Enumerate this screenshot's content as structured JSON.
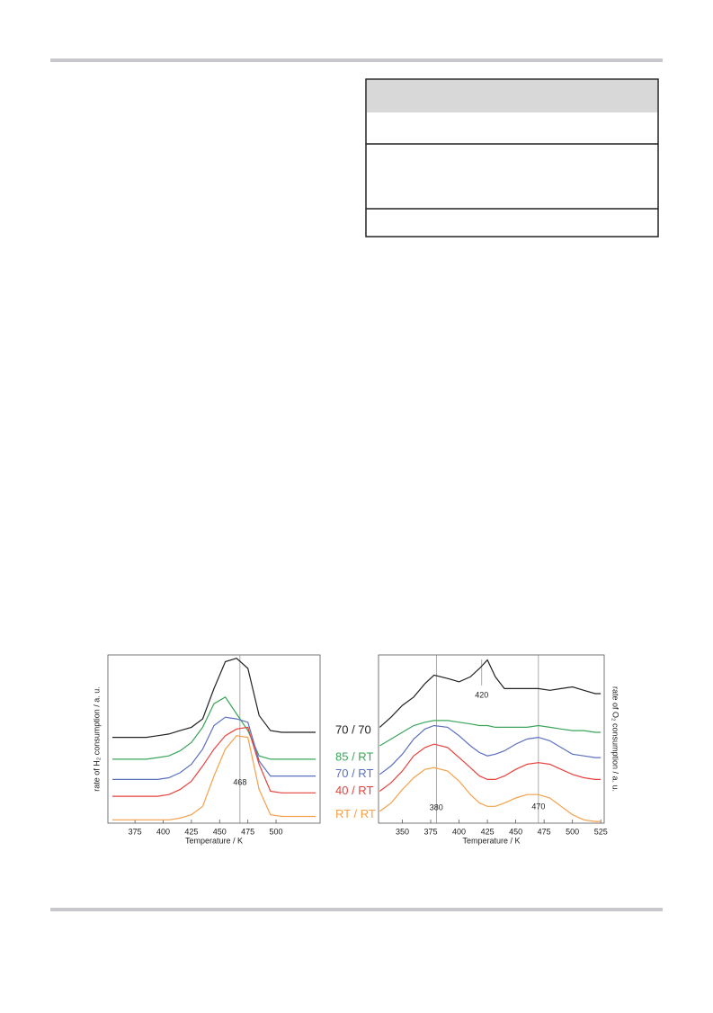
{
  "chart_data": [
    {
      "type": "line",
      "xlabel": "Temperature / K",
      "ylabel": "rate of H₂ consumption / a. u.",
      "xlim": [
        351,
        539
      ],
      "ylim": [
        0,
        100
      ],
      "xticks": [
        375,
        400,
        425,
        450,
        475,
        500
      ],
      "legend": "right",
      "annotations": [
        468
      ],
      "x": [
        355,
        365,
        375,
        385,
        395,
        405,
        415,
        425,
        435,
        445,
        455,
        465,
        475,
        485,
        495,
        505,
        515,
        525,
        535
      ],
      "series": [
        {
          "name": "70 / 70",
          "color": "#222222",
          "values": [
            51,
            51,
            51,
            51,
            52,
            53,
            55,
            57,
            62,
            80,
            96,
            98,
            92,
            64,
            55,
            54,
            54,
            54,
            54
          ]
        },
        {
          "name": "85 / RT",
          "color": "#3aa55a",
          "values": [
            38,
            38,
            38,
            38,
            39,
            40,
            43,
            48,
            57,
            71,
            75,
            65,
            55,
            40,
            38,
            38,
            38,
            38,
            38
          ]
        },
        {
          "name": "70 / RT",
          "color": "#5b6fc0",
          "values": [
            26,
            26,
            26,
            26,
            26,
            27,
            30,
            35,
            44,
            58,
            63,
            62,
            60,
            37,
            28,
            28,
            28,
            28,
            28
          ]
        },
        {
          "name": "40 / RT",
          "color": "#e8413c",
          "values": [
            16,
            16,
            16,
            16,
            16,
            17,
            20,
            25,
            34,
            44,
            52,
            56,
            57,
            35,
            19,
            18,
            18,
            18,
            18
          ]
        },
        {
          "name": "RT / RT",
          "color": "#f5a04a",
          "values": [
            2,
            2,
            2,
            2,
            2,
            2,
            3,
            5,
            10,
            28,
            44,
            52,
            51,
            20,
            5,
            4,
            4,
            4,
            4
          ]
        }
      ]
    },
    {
      "type": "line",
      "xlabel": "Temperature / K",
      "ylabel": "rate of O₂ consumption / a. u.",
      "xlim": [
        329,
        528
      ],
      "ylim": [
        0,
        100
      ],
      "xticks": [
        350,
        375,
        400,
        425,
        450,
        475,
        500,
        525
      ],
      "annotations": [
        420,
        380,
        470
      ],
      "x": [
        330,
        340,
        350,
        360,
        370,
        378,
        390,
        400,
        410,
        418,
        425,
        432,
        440,
        450,
        460,
        470,
        480,
        490,
        500,
        510,
        520,
        525
      ],
      "series": [
        {
          "color": "#222222",
          "values": [
            57,
            63,
            70,
            75,
            83,
            88,
            86,
            84,
            87,
            92,
            97,
            87,
            80,
            80,
            80,
            80,
            79,
            80,
            81,
            79,
            77,
            77
          ]
        },
        {
          "color": "#3aa55a",
          "values": [
            46,
            50,
            54,
            58,
            60,
            61,
            61,
            60,
            59,
            58,
            58,
            57,
            57,
            57,
            57,
            58,
            57,
            56,
            55,
            55,
            54,
            54
          ]
        },
        {
          "color": "#5b6fc0",
          "values": [
            29,
            34,
            41,
            50,
            56,
            58,
            57,
            52,
            46,
            42,
            40,
            41,
            43,
            47,
            50,
            51,
            49,
            45,
            41,
            40,
            39,
            39
          ]
        },
        {
          "color": "#e8413c",
          "values": [
            19,
            24,
            31,
            40,
            45,
            47,
            45,
            39,
            33,
            28,
            26,
            26,
            28,
            32,
            35,
            36,
            35,
            32,
            29,
            27,
            26,
            26
          ]
        },
        {
          "color": "#f5a04a",
          "values": [
            7,
            12,
            20,
            27,
            32,
            33,
            31,
            25,
            17,
            12,
            10,
            10,
            12,
            15,
            17,
            17,
            15,
            10,
            5,
            2,
            1,
            1
          ]
        }
      ]
    }
  ]
}
